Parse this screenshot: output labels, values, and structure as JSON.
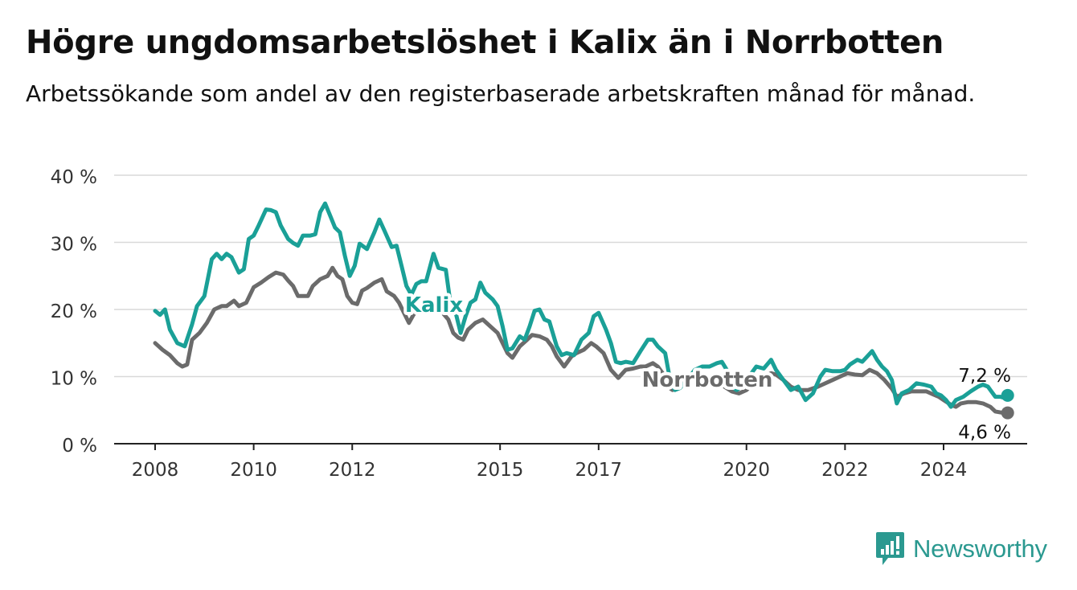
{
  "title": "Högre ungdomsarbetslöshet i Kalix än i Norrbotten",
  "subtitle": "Arbetssökande som andel av den registerbaserade arbetskraften månad för månad.",
  "brand": {
    "name": "Newsworthy",
    "icon": "bar-chart-speech-bubble-icon",
    "color": "#2b9990"
  },
  "chart_data": {
    "type": "line",
    "title": "Högre ungdomsarbetslöshet i Kalix än i Norrbotten",
    "xlabel": "",
    "ylabel": "",
    "xlim": [
      2008,
      2025.5
    ],
    "ylim": [
      0,
      40
    ],
    "y_ticks": [
      0,
      10,
      20,
      30,
      40
    ],
    "y_tick_labels": [
      "0 %",
      "10 %",
      "20 %",
      "30 %",
      "40 %"
    ],
    "x_ticks": [
      2008,
      2010,
      2012,
      2015,
      2017,
      2020,
      2022,
      2024
    ],
    "x_tick_labels": [
      "2008",
      "2010",
      "2012",
      "2015",
      "2017",
      "2020",
      "2022",
      "2024"
    ],
    "grid": "horizontal",
    "series": [
      {
        "name": "Kalix",
        "color": "#1aa097",
        "end_label": "7,2 %",
        "points": [
          [
            2008.0,
            19.8
          ],
          [
            2008.1,
            19.2
          ],
          [
            2008.2,
            20.0
          ],
          [
            2008.3,
            17.0
          ],
          [
            2008.45,
            15.0
          ],
          [
            2008.6,
            14.5
          ],
          [
            2008.75,
            17.8
          ],
          [
            2008.85,
            20.5
          ],
          [
            2009.0,
            22.0
          ],
          [
            2009.15,
            27.5
          ],
          [
            2009.25,
            28.3
          ],
          [
            2009.35,
            27.5
          ],
          [
            2009.45,
            28.3
          ],
          [
            2009.55,
            27.8
          ],
          [
            2009.7,
            25.5
          ],
          [
            2009.8,
            26.0
          ],
          [
            2009.9,
            30.5
          ],
          [
            2010.0,
            31.0
          ],
          [
            2010.1,
            32.5
          ],
          [
            2010.25,
            34.9
          ],
          [
            2010.35,
            34.8
          ],
          [
            2010.45,
            34.5
          ],
          [
            2010.55,
            32.5
          ],
          [
            2010.7,
            30.5
          ],
          [
            2010.8,
            29.9
          ],
          [
            2010.9,
            29.5
          ],
          [
            2011.0,
            31.0
          ],
          [
            2011.15,
            31.0
          ],
          [
            2011.25,
            31.2
          ],
          [
            2011.35,
            34.5
          ],
          [
            2011.45,
            35.8
          ],
          [
            2011.55,
            34.0
          ],
          [
            2011.65,
            32.2
          ],
          [
            2011.75,
            31.5
          ],
          [
            2011.85,
            28.0
          ],
          [
            2011.95,
            25.0
          ],
          [
            2012.05,
            26.5
          ],
          [
            2012.15,
            29.8
          ],
          [
            2012.3,
            29.0
          ],
          [
            2012.45,
            31.5
          ],
          [
            2012.55,
            33.4
          ],
          [
            2012.65,
            31.8
          ],
          [
            2012.8,
            29.3
          ],
          [
            2012.9,
            29.5
          ],
          [
            2013.0,
            26.5
          ],
          [
            2013.1,
            23.5
          ],
          [
            2013.2,
            22.2
          ],
          [
            2013.3,
            23.8
          ],
          [
            2013.4,
            24.2
          ],
          [
            2013.5,
            24.2
          ],
          [
            2013.65,
            28.3
          ],
          [
            2013.75,
            26.2
          ],
          [
            2013.9,
            25.9
          ],
          [
            2014.0,
            20.5
          ],
          [
            2014.1,
            19.5
          ],
          [
            2014.2,
            16.5
          ],
          [
            2014.3,
            19.0
          ],
          [
            2014.4,
            21.0
          ],
          [
            2014.5,
            21.5
          ],
          [
            2014.6,
            24.0
          ],
          [
            2014.7,
            22.5
          ],
          [
            2014.85,
            21.5
          ],
          [
            2014.95,
            20.5
          ],
          [
            2015.05,
            17.5
          ],
          [
            2015.15,
            14.0
          ],
          [
            2015.25,
            14.2
          ],
          [
            2015.4,
            16.0
          ],
          [
            2015.5,
            15.5
          ],
          [
            2015.6,
            17.5
          ],
          [
            2015.7,
            19.8
          ],
          [
            2015.8,
            20.0
          ],
          [
            2015.9,
            18.5
          ],
          [
            2016.0,
            18.2
          ],
          [
            2016.15,
            14.5
          ],
          [
            2016.25,
            13.2
          ],
          [
            2016.35,
            13.5
          ],
          [
            2016.5,
            13.2
          ],
          [
            2016.65,
            15.5
          ],
          [
            2016.8,
            16.5
          ],
          [
            2016.9,
            19.0
          ],
          [
            2017.0,
            19.5
          ],
          [
            2017.15,
            17.0
          ],
          [
            2017.25,
            15.0
          ],
          [
            2017.35,
            12.2
          ],
          [
            2017.45,
            12.0
          ],
          [
            2017.55,
            12.2
          ],
          [
            2017.7,
            12.0
          ],
          [
            2017.85,
            13.8
          ],
          [
            2018.0,
            15.5
          ],
          [
            2018.1,
            15.5
          ],
          [
            2018.2,
            14.5
          ],
          [
            2018.35,
            13.5
          ],
          [
            2018.45,
            9.5
          ],
          [
            2018.55,
            8.0
          ],
          [
            2018.65,
            8.3
          ],
          [
            2018.8,
            9.5
          ],
          [
            2018.95,
            11.0
          ],
          [
            2019.1,
            11.5
          ],
          [
            2019.25,
            11.5
          ],
          [
            2019.4,
            12.0
          ],
          [
            2019.5,
            12.2
          ],
          [
            2019.6,
            11.0
          ],
          [
            2019.7,
            8.5
          ],
          [
            2019.8,
            8.0
          ],
          [
            2019.9,
            8.5
          ],
          [
            2020.0,
            9.5
          ],
          [
            2020.2,
            11.5
          ],
          [
            2020.35,
            11.2
          ],
          [
            2020.5,
            12.5
          ],
          [
            2020.6,
            11.0
          ],
          [
            2020.75,
            9.5
          ],
          [
            2020.9,
            8.0
          ],
          [
            2021.05,
            8.5
          ],
          [
            2021.2,
            6.5
          ],
          [
            2021.35,
            7.5
          ],
          [
            2021.5,
            10.0
          ],
          [
            2021.6,
            11.0
          ],
          [
            2021.75,
            10.8
          ],
          [
            2021.9,
            10.8
          ],
          [
            2022.0,
            11.0
          ],
          [
            2022.1,
            11.8
          ],
          [
            2022.25,
            12.5
          ],
          [
            2022.35,
            12.2
          ],
          [
            2022.45,
            13.0
          ],
          [
            2022.55,
            13.8
          ],
          [
            2022.65,
            12.5
          ],
          [
            2022.75,
            11.5
          ],
          [
            2022.85,
            10.8
          ],
          [
            2022.95,
            9.5
          ],
          [
            2023.05,
            6.0
          ],
          [
            2023.15,
            7.5
          ],
          [
            2023.3,
            8.0
          ],
          [
            2023.45,
            9.0
          ],
          [
            2023.6,
            8.8
          ],
          [
            2023.75,
            8.5
          ],
          [
            2023.85,
            7.5
          ],
          [
            2023.95,
            7.2
          ],
          [
            2024.05,
            6.5
          ],
          [
            2024.15,
            5.5
          ],
          [
            2024.25,
            6.5
          ],
          [
            2024.4,
            7.0
          ],
          [
            2024.55,
            7.8
          ],
          [
            2024.7,
            8.5
          ],
          [
            2024.8,
            8.8
          ],
          [
            2024.9,
            8.5
          ],
          [
            2024.95,
            8.0
          ],
          [
            2025.05,
            7.0
          ],
          [
            2025.15,
            7.0
          ],
          [
            2025.25,
            6.8
          ],
          [
            2025.3,
            7.2
          ]
        ]
      },
      {
        "name": "Norrbotten",
        "color": "#6b6b6b",
        "end_label": "4,6 %",
        "points": [
          [
            2008.0,
            15.0
          ],
          [
            2008.15,
            14.0
          ],
          [
            2008.3,
            13.2
          ],
          [
            2008.45,
            12.0
          ],
          [
            2008.55,
            11.5
          ],
          [
            2008.65,
            11.8
          ],
          [
            2008.75,
            15.5
          ],
          [
            2008.9,
            16.5
          ],
          [
            2009.05,
            18.0
          ],
          [
            2009.2,
            20.0
          ],
          [
            2009.35,
            20.5
          ],
          [
            2009.45,
            20.5
          ],
          [
            2009.6,
            21.3
          ],
          [
            2009.7,
            20.5
          ],
          [
            2009.85,
            21.0
          ],
          [
            2010.0,
            23.3
          ],
          [
            2010.15,
            24.0
          ],
          [
            2010.3,
            24.8
          ],
          [
            2010.45,
            25.5
          ],
          [
            2010.6,
            25.2
          ],
          [
            2010.7,
            24.3
          ],
          [
            2010.8,
            23.5
          ],
          [
            2010.9,
            22.0
          ],
          [
            2011.0,
            22.0
          ],
          [
            2011.1,
            22.0
          ],
          [
            2011.2,
            23.5
          ],
          [
            2011.35,
            24.5
          ],
          [
            2011.5,
            25.0
          ],
          [
            2011.6,
            26.2
          ],
          [
            2011.7,
            25.0
          ],
          [
            2011.8,
            24.5
          ],
          [
            2011.9,
            22.0
          ],
          [
            2012.0,
            21.0
          ],
          [
            2012.1,
            20.8
          ],
          [
            2012.2,
            22.8
          ],
          [
            2012.3,
            23.2
          ],
          [
            2012.45,
            24.0
          ],
          [
            2012.6,
            24.5
          ],
          [
            2012.7,
            22.7
          ],
          [
            2012.85,
            22.0
          ],
          [
            2012.95,
            21.0
          ],
          [
            2013.05,
            19.5
          ],
          [
            2013.15,
            18.0
          ],
          [
            2013.25,
            19.3
          ],
          [
            2013.4,
            20.0
          ],
          [
            2013.55,
            20.5
          ],
          [
            2013.7,
            21.0
          ],
          [
            2013.8,
            19.8
          ],
          [
            2013.95,
            18.5
          ],
          [
            2014.05,
            16.5
          ],
          [
            2014.15,
            15.8
          ],
          [
            2014.25,
            15.5
          ],
          [
            2014.35,
            17.0
          ],
          [
            2014.5,
            18.0
          ],
          [
            2014.65,
            18.5
          ],
          [
            2014.8,
            17.5
          ],
          [
            2014.95,
            16.5
          ],
          [
            2015.05,
            15.0
          ],
          [
            2015.15,
            13.5
          ],
          [
            2015.25,
            12.8
          ],
          [
            2015.4,
            14.5
          ],
          [
            2015.55,
            15.5
          ],
          [
            2015.65,
            16.2
          ],
          [
            2015.8,
            16.0
          ],
          [
            2015.95,
            15.5
          ],
          [
            2016.05,
            14.5
          ],
          [
            2016.15,
            13.0
          ],
          [
            2016.3,
            11.5
          ],
          [
            2016.45,
            13.0
          ],
          [
            2016.55,
            13.5
          ],
          [
            2016.7,
            14.0
          ],
          [
            2016.85,
            15.0
          ],
          [
            2016.95,
            14.5
          ],
          [
            2017.1,
            13.5
          ],
          [
            2017.25,
            11.0
          ],
          [
            2017.4,
            9.8
          ],
          [
            2017.55,
            11.0
          ],
          [
            2017.7,
            11.2
          ],
          [
            2017.85,
            11.5
          ],
          [
            2017.95,
            11.5
          ],
          [
            2018.1,
            12.0
          ],
          [
            2018.2,
            11.5
          ],
          [
            2018.3,
            10.5
          ],
          [
            2018.4,
            8.5
          ],
          [
            2018.5,
            8.0
          ],
          [
            2018.65,
            9.0
          ],
          [
            2018.8,
            9.5
          ],
          [
            2018.95,
            10.5
          ],
          [
            2019.1,
            10.0
          ],
          [
            2019.25,
            9.5
          ],
          [
            2019.4,
            9.0
          ],
          [
            2019.55,
            8.5
          ],
          [
            2019.7,
            7.8
          ],
          [
            2019.85,
            7.5
          ],
          [
            2020.0,
            8.0
          ],
          [
            2020.2,
            9.5
          ],
          [
            2020.35,
            10.0
          ],
          [
            2020.5,
            10.5
          ],
          [
            2020.6,
            10.3
          ],
          [
            2020.75,
            9.5
          ],
          [
            2020.9,
            8.5
          ],
          [
            2021.05,
            8.0
          ],
          [
            2021.25,
            8.0
          ],
          [
            2021.45,
            8.5
          ],
          [
            2021.6,
            9.0
          ],
          [
            2021.75,
            9.5
          ],
          [
            2021.9,
            10.0
          ],
          [
            2022.05,
            10.5
          ],
          [
            2022.2,
            10.3
          ],
          [
            2022.35,
            10.2
          ],
          [
            2022.5,
            11.0
          ],
          [
            2022.65,
            10.5
          ],
          [
            2022.8,
            9.5
          ],
          [
            2022.95,
            8.2
          ],
          [
            2023.05,
            7.0
          ],
          [
            2023.2,
            7.5
          ],
          [
            2023.35,
            7.8
          ],
          [
            2023.5,
            7.8
          ],
          [
            2023.65,
            7.8
          ],
          [
            2023.8,
            7.3
          ],
          [
            2023.9,
            7.0
          ],
          [
            2024.0,
            6.5
          ],
          [
            2024.15,
            5.8
          ],
          [
            2024.25,
            5.5
          ],
          [
            2024.35,
            6.0
          ],
          [
            2024.5,
            6.2
          ],
          [
            2024.65,
            6.2
          ],
          [
            2024.8,
            6.0
          ],
          [
            2024.95,
            5.5
          ],
          [
            2025.05,
            4.8
          ],
          [
            2025.2,
            4.6
          ],
          [
            2025.3,
            4.6
          ]
        ]
      }
    ]
  }
}
